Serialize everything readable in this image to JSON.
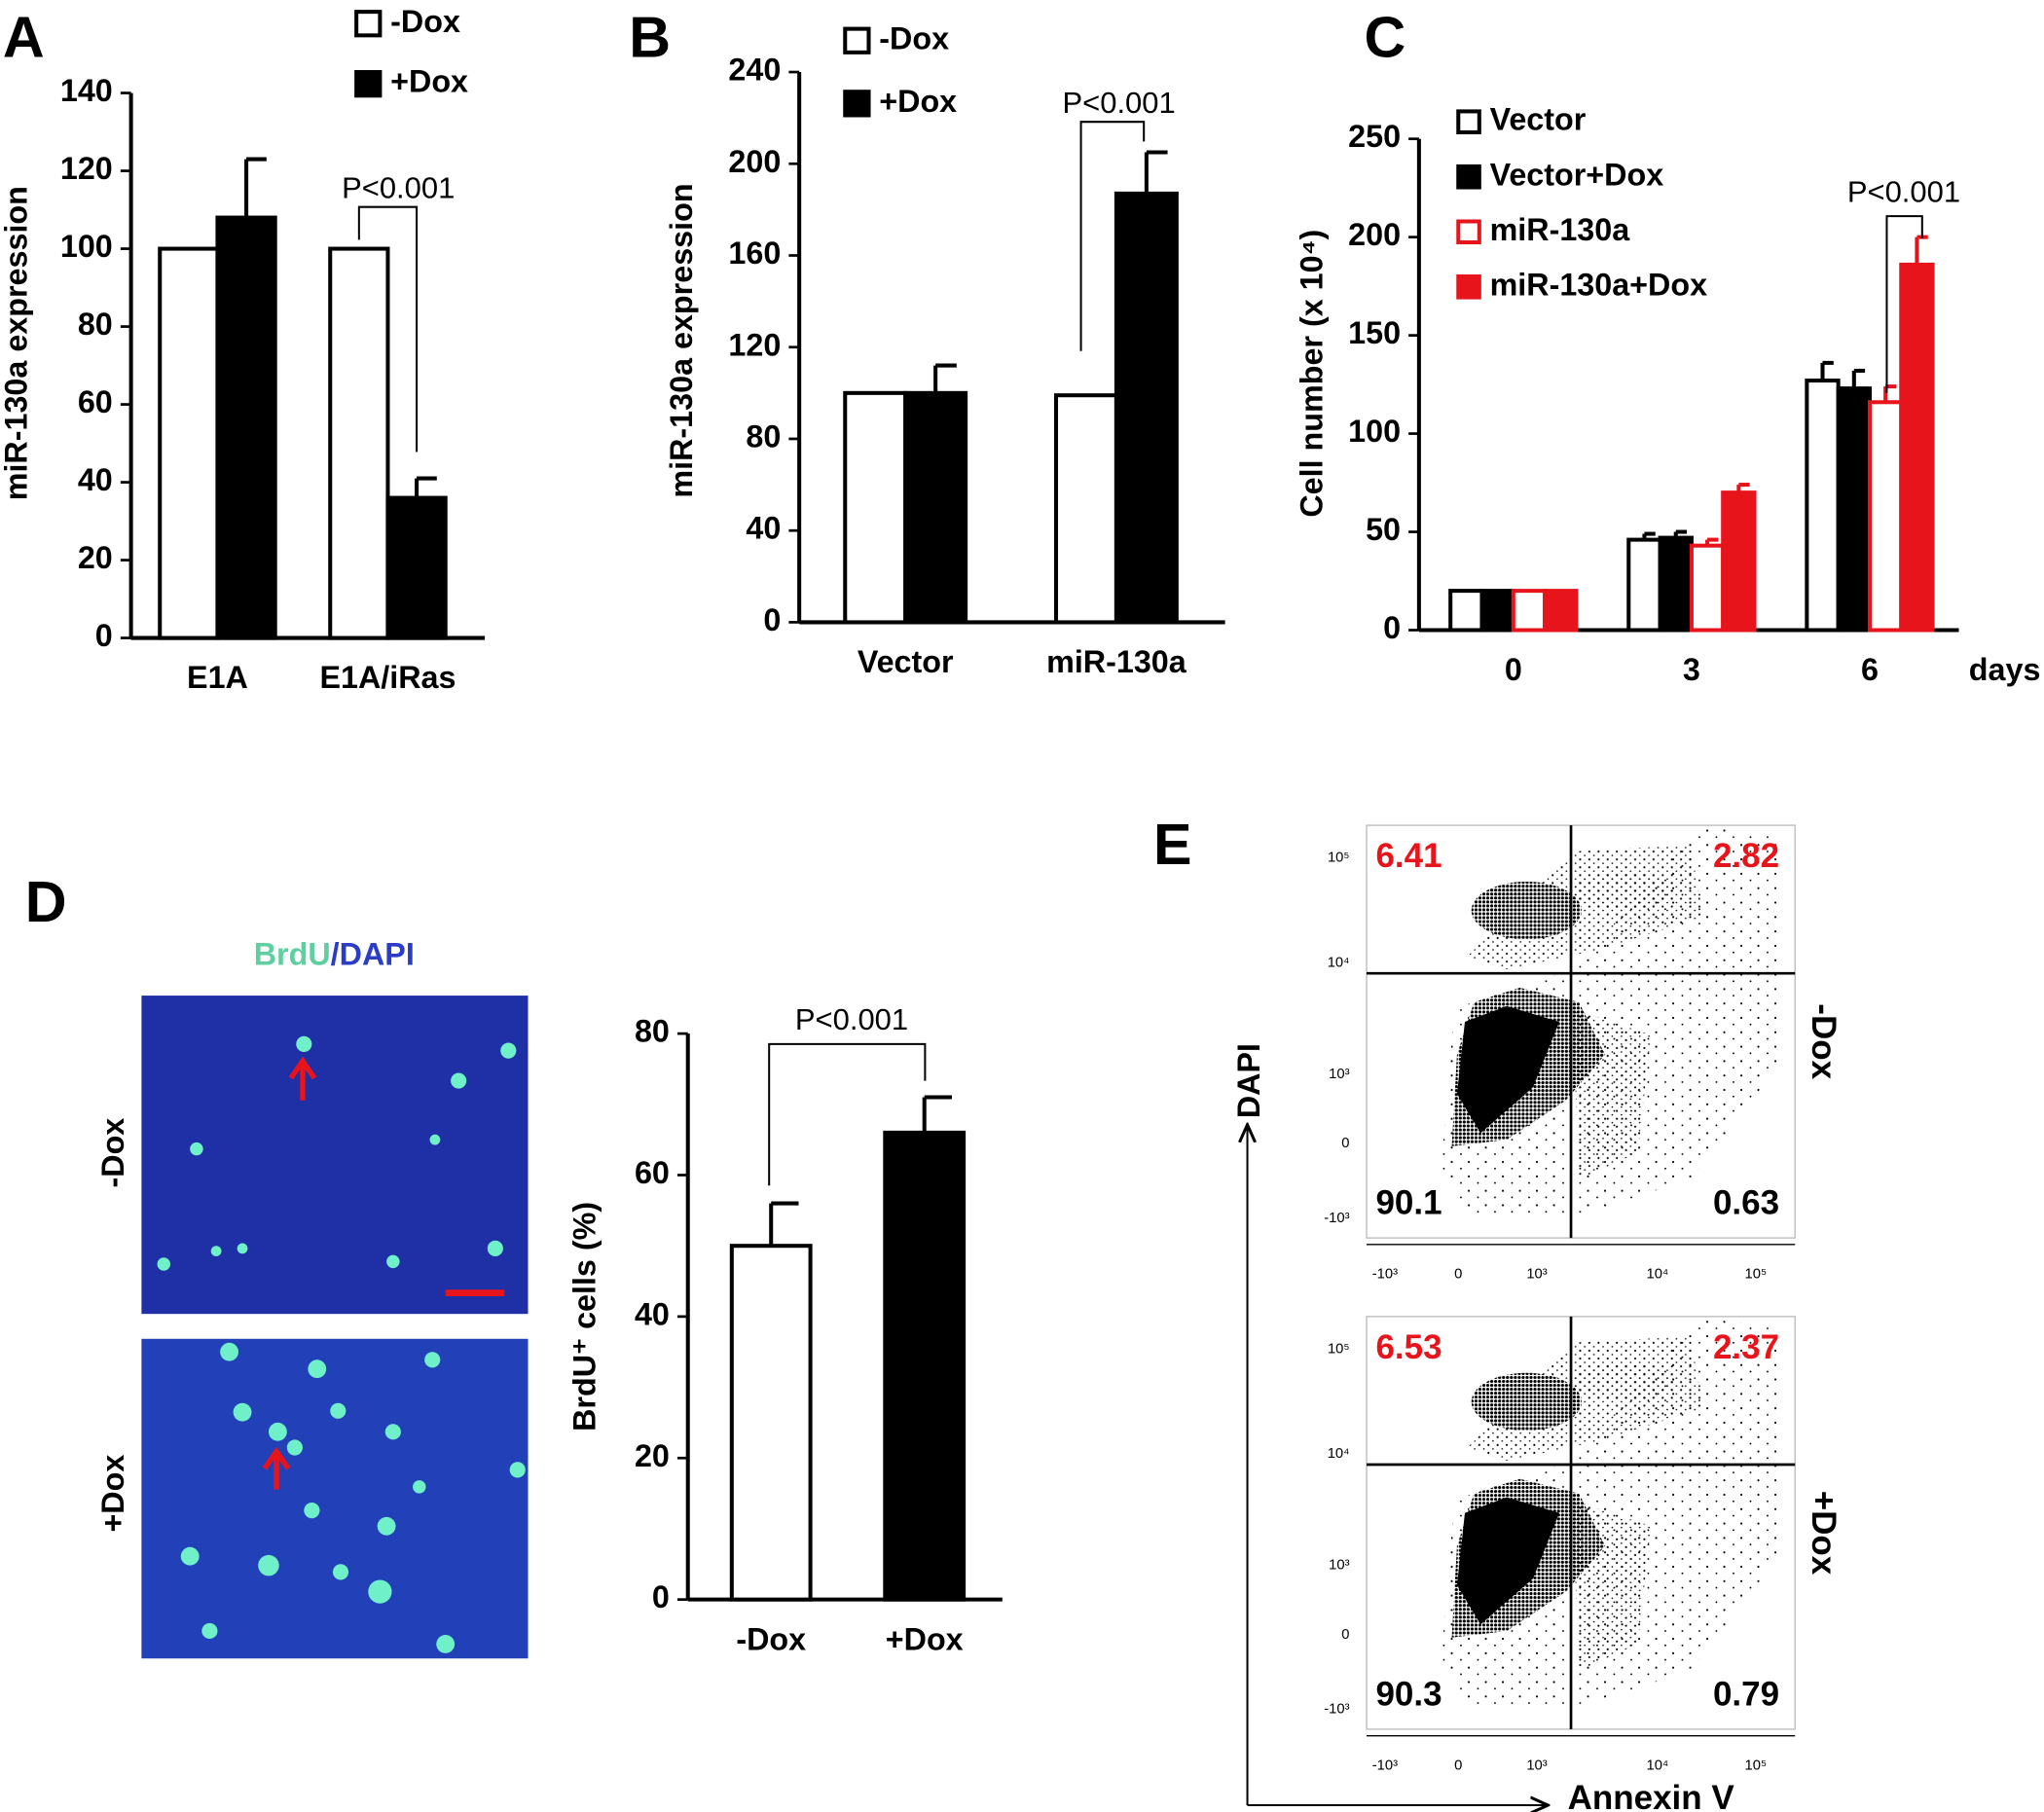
{
  "chart_data": [
    {
      "type": "bar",
      "panel": "A",
      "ylabel": "miR-130a expression",
      "categories": [
        "E1A",
        "E1A/iRas"
      ],
      "series": [
        {
          "name": "-Dox",
          "color": "#ffffff",
          "edgecolor": "#000000",
          "values": [
            100,
            100
          ]
        },
        {
          "name": "+Dox",
          "color": "#000000",
          "edgecolor": "#000000",
          "values": [
            108,
            36
          ],
          "errors": [
            15,
            5
          ]
        }
      ],
      "ylim": [
        0,
        140
      ],
      "yticks": [
        0,
        20,
        40,
        60,
        80,
        100,
        120,
        140
      ],
      "annotation": "P<0.001"
    },
    {
      "type": "bar",
      "panel": "B",
      "ylabel": "miR-130a expression",
      "categories": [
        "Vector",
        "miR-130a"
      ],
      "series": [
        {
          "name": "-Dox",
          "color": "#ffffff",
          "edgecolor": "#000000",
          "values": [
            100,
            99
          ]
        },
        {
          "name": "+Dox",
          "color": "#000000",
          "edgecolor": "#000000",
          "values": [
            100,
            187
          ],
          "errors": [
            12,
            18
          ]
        }
      ],
      "ylim": [
        0,
        240
      ],
      "yticks": [
        0,
        40,
        80,
        120,
        160,
        200,
        240
      ],
      "annotation": "P<0.001"
    },
    {
      "type": "bar",
      "panel": "C",
      "ylabel": "Cell number (x 10⁴)",
      "xlabel": "days",
      "categories": [
        "0",
        "3",
        "6"
      ],
      "series": [
        {
          "name": "Vector",
          "color": "#ffffff",
          "edgecolor": "#000000",
          "values": [
            20,
            46,
            127
          ],
          "errors": [
            null,
            3,
            9
          ]
        },
        {
          "name": "Vector+Dox",
          "color": "#000000",
          "edgecolor": "#000000",
          "values": [
            20,
            47,
            123
          ],
          "errors": [
            null,
            3,
            9
          ]
        },
        {
          "name": "miR-130a",
          "color": "#ffffff",
          "edgecolor": "#e8141c",
          "values": [
            20,
            43,
            116
          ],
          "errors": [
            null,
            3,
            8
          ]
        },
        {
          "name": "miR-130a+Dox",
          "color": "#e8141c",
          "edgecolor": "#e8141c",
          "values": [
            20,
            70,
            186
          ],
          "errors": [
            null,
            4,
            14
          ]
        }
      ],
      "ylim": [
        0,
        250
      ],
      "yticks": [
        0,
        50,
        100,
        150,
        200,
        250
      ],
      "annotation": "P<0.001"
    },
    {
      "type": "bar",
      "panel": "D",
      "ylabel": "BrdU⁺ cells (%)",
      "categories": [
        "-Dox",
        "+Dox"
      ],
      "values": [
        50,
        66
      ],
      "errors": [
        6,
        5
      ],
      "colors": [
        "#ffffff",
        "#000000"
      ],
      "edgecolor": "#000000",
      "ylim": [
        0,
        80
      ],
      "yticks": [
        0,
        20,
        40,
        60,
        80
      ],
      "annotation": "P<0.001",
      "image_title": [
        "BrdU",
        "/",
        "DAPI"
      ],
      "image_labels": [
        "-Dox",
        "+Dox"
      ]
    },
    {
      "type": "flow",
      "panel": "E",
      "xlabel": "Annexin V",
      "ylabel": "DAPI",
      "ytick_labels": [
        "10⁵",
        "10⁴",
        "10³",
        "0",
        "-10³"
      ],
      "xtick_labels": [
        "-10³",
        "0",
        "10³",
        "10⁴",
        "10⁵"
      ],
      "plots": [
        {
          "label": "-Dox",
          "quadrants": [
            6.41,
            2.82,
            90.1,
            0.63
          ]
        },
        {
          "label": "+Dox",
          "quadrants": [
            6.53,
            2.37,
            90.3,
            0.79
          ]
        }
      ]
    }
  ]
}
